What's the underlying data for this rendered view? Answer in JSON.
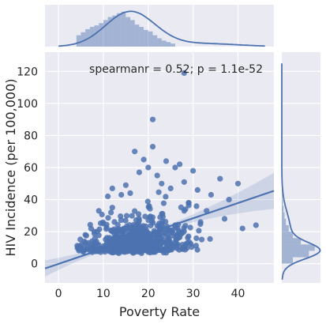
{
  "chart_data": {
    "type": "scatter",
    "xlabel": "Poverty Rate",
    "ylabel": "HIV Incidence (per 100,000)",
    "annotation": "spearmanr = 0.52; p = 1.1e-52",
    "xlim": [
      -3,
      48
    ],
    "ylim": [
      -12,
      132
    ],
    "xticks": [
      0,
      10,
      20,
      30,
      40
    ],
    "yticks": [
      0,
      20,
      40,
      60,
      80,
      100,
      120
    ],
    "regression": {
      "slope": 0.95,
      "intercept": -0.15,
      "x_range": [
        -3,
        48
      ]
    },
    "grid": true,
    "outliers": [
      [
        28,
        119
      ],
      [
        21,
        90
      ],
      [
        12,
        47
      ],
      [
        15,
        49
      ],
      [
        27,
        62
      ],
      [
        30,
        58
      ],
      [
        36,
        53
      ],
      [
        40,
        50
      ],
      [
        21,
        73
      ],
      [
        19,
        65
      ],
      [
        26,
        60
      ],
      [
        17,
        70
      ],
      [
        24,
        64
      ],
      [
        22,
        55
      ],
      [
        28,
        51
      ],
      [
        18,
        57
      ],
      [
        31,
        46
      ],
      [
        34,
        43
      ],
      [
        38,
        40
      ],
      [
        29,
        38
      ],
      [
        25,
        47
      ],
      [
        14,
        43
      ],
      [
        11,
        42
      ],
      [
        20,
        60
      ],
      [
        23,
        50
      ],
      [
        33,
        33
      ],
      [
        37,
        28
      ],
      [
        41,
        22
      ],
      [
        44,
        24
      ],
      [
        16,
        44
      ],
      [
        12,
        35
      ],
      [
        9,
        33
      ],
      [
        10,
        25
      ],
      [
        8,
        20
      ],
      [
        6,
        18
      ]
    ],
    "cluster": {
      "x_center": 17,
      "x_sd": 6,
      "base_y": 6,
      "count": 560
    },
    "marginal_x": {
      "bins": [
        4,
        5,
        6,
        7,
        8,
        9,
        10,
        11,
        12,
        13,
        14,
        15,
        16,
        17,
        18,
        19,
        20,
        21,
        22,
        23,
        24,
        25
      ],
      "heights": [
        0.3,
        0.38,
        0.46,
        0.52,
        0.56,
        0.62,
        0.7,
        0.78,
        0.82,
        0.88,
        0.92,
        0.78,
        0.7,
        0.58,
        0.52,
        0.44,
        0.4,
        0.3,
        0.22,
        0.16,
        0.12,
        0.08
      ]
    },
    "marginal_y": {
      "bins": [
        0,
        4,
        8,
        12,
        16,
        20,
        24,
        28,
        32,
        36,
        40,
        44
      ],
      "widths": [
        0.32,
        0.78,
        0.95,
        0.55,
        0.32,
        0.2,
        0.12,
        0.08,
        0.05,
        0.03,
        0.02,
        0.01
      ]
    }
  }
}
